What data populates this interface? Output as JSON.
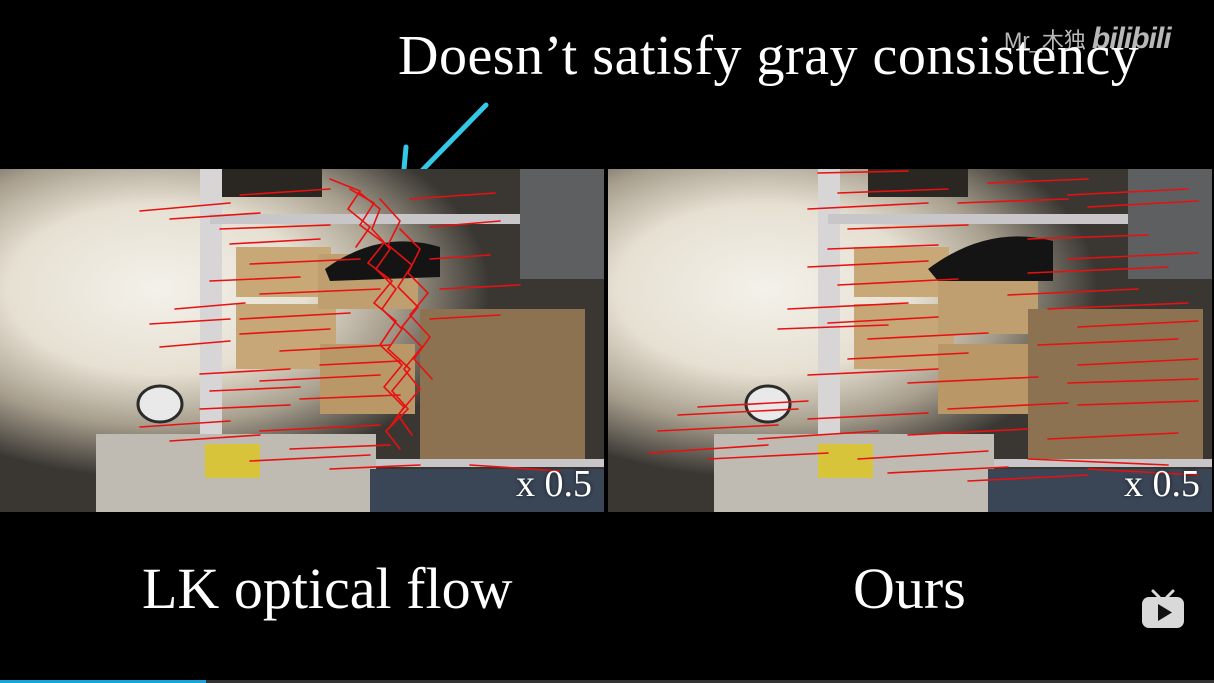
{
  "headline": "Doesn’t satisfy gray consistency",
  "watermark": {
    "user": "Mr_木独",
    "brand": "bilibili"
  },
  "panels": {
    "left": {
      "speed_label": "x 0.5",
      "caption": "LK optical flow"
    },
    "right": {
      "speed_label": "x 0.5",
      "caption": "Ours"
    }
  },
  "icons": {
    "pointer_arrow": "arrow-icon",
    "player": "bilibili-tv-icon"
  },
  "colors": {
    "background": "#000000",
    "arrow": "#34c8e8",
    "flow_tracks": "#e81010",
    "text": "#ffffff"
  },
  "playback": {
    "progress_fraction": 0.17
  }
}
